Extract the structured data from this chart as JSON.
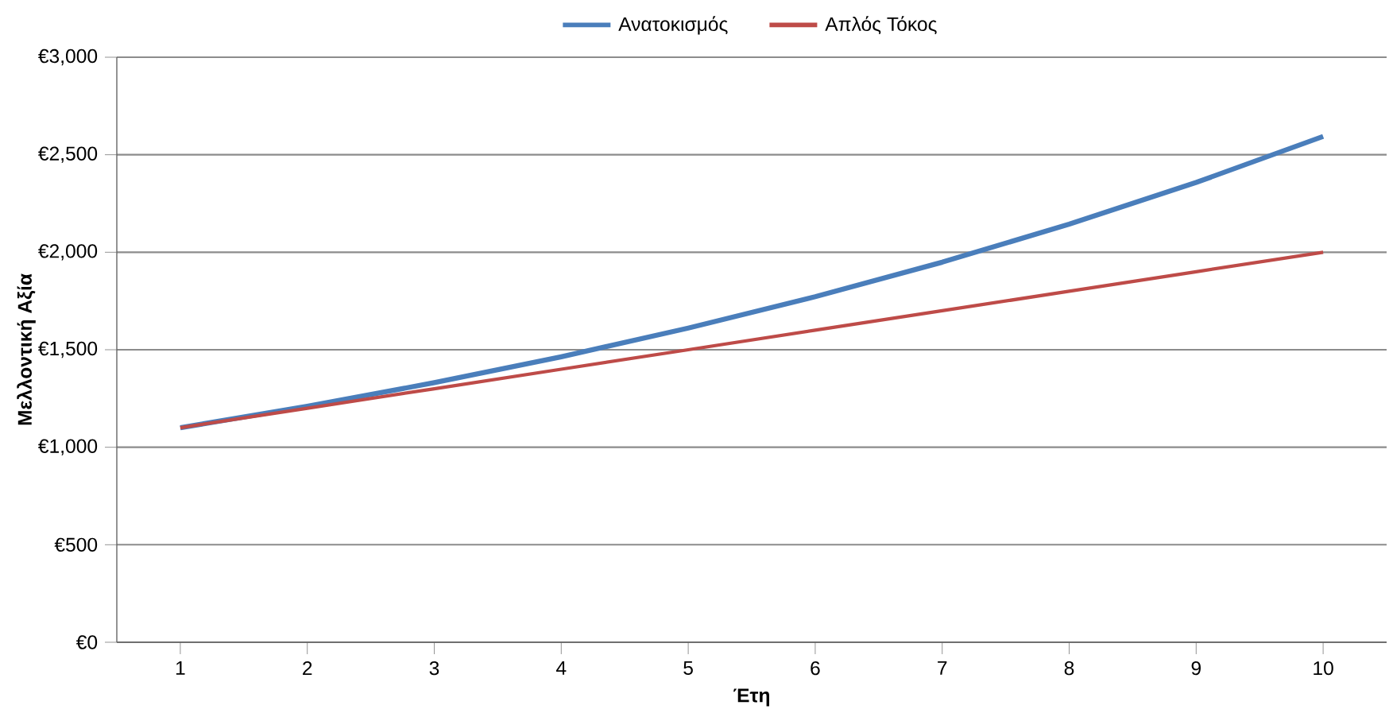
{
  "chart_data": {
    "type": "line",
    "xlabel": "Έτη",
    "ylabel": "Μελλοντική Αξία",
    "categories": [
      "1",
      "2",
      "3",
      "4",
      "5",
      "6",
      "7",
      "8",
      "9",
      "10"
    ],
    "series": [
      {
        "name": "Ανατοκισμός",
        "color": "#4a7ebb",
        "values": [
          1100,
          1210,
          1331,
          1464,
          1611,
          1772,
          1949,
          2144,
          2358,
          2594
        ]
      },
      {
        "name": "Απλός Τόκος",
        "color": "#be4b48",
        "values": [
          1100,
          1200,
          1300,
          1400,
          1500,
          1600,
          1700,
          1800,
          1900,
          2000
        ]
      }
    ],
    "ylim": [
      0,
      3000
    ],
    "yticks": [
      {
        "value": 0,
        "label": "€0"
      },
      {
        "value": 500,
        "label": "€500"
      },
      {
        "value": 1000,
        "label": "€1,000"
      },
      {
        "value": 1500,
        "label": "€1,500"
      },
      {
        "value": 2000,
        "label": "€2,000"
      },
      {
        "value": 2500,
        "label": "€2,500"
      },
      {
        "value": 3000,
        "label": "€3,000"
      }
    ],
    "grid": "y",
    "legend": "top",
    "marker": "none",
    "line_style": "solid"
  }
}
